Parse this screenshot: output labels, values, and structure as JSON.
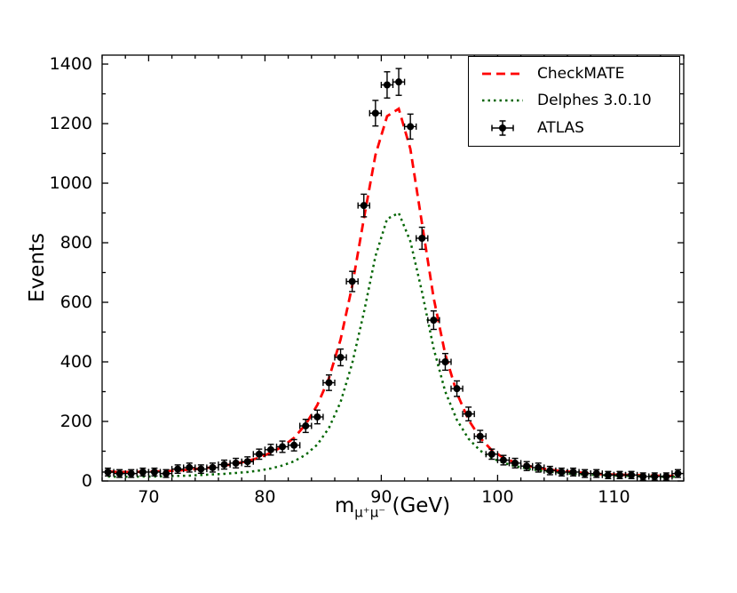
{
  "figure": {
    "ylabel": "Events",
    "xlabel_main": "m",
    "xlabel_sub": "μ⁺μ⁻",
    "xlabel_unit": " (GeV)",
    "background": "#ffffff",
    "frame_color": "#000000"
  },
  "legend": {
    "position": "upper right",
    "entries": [
      {
        "label": "CheckMATE",
        "style": "dashed",
        "color": "#ff0000"
      },
      {
        "label": "Delphes 3.0.10",
        "style": "dotted",
        "color": "#006400"
      },
      {
        "label": "ATLAS",
        "style": "errorbar-marker",
        "color": "#000000"
      }
    ]
  },
  "chart_data": {
    "type": "line",
    "title": "",
    "xlabel": "m_mu+mu- (GeV)",
    "ylabel": "Events",
    "xlim": [
      66,
      116
    ],
    "ylim": [
      0,
      1430
    ],
    "xticks": [
      70,
      80,
      90,
      100,
      110
    ],
    "yticks": [
      0,
      200,
      400,
      600,
      800,
      1000,
      1200,
      1400
    ],
    "grid": false,
    "legend_position": "upper right",
    "x": [
      66.5,
      67.5,
      68.5,
      69.5,
      70.5,
      71.5,
      72.5,
      73.5,
      74.5,
      75.5,
      76.5,
      77.5,
      78.5,
      79.5,
      80.5,
      81.5,
      82.5,
      83.5,
      84.5,
      85.5,
      86.5,
      87.5,
      88.5,
      89.5,
      90.5,
      91.5,
      92.5,
      93.5,
      94.5,
      95.5,
      96.5,
      97.5,
      98.5,
      99.5,
      100.5,
      101.5,
      102.5,
      103.5,
      104.5,
      105.5,
      106.5,
      107.5,
      108.5,
      109.5,
      110.5,
      111.5,
      112.5,
      113.5,
      114.5,
      115.5
    ],
    "series": [
      {
        "name": "CheckMATE",
        "style": "dashed",
        "color": "#ff0000",
        "y": [
          32,
          30,
          30,
          31,
          32,
          33,
          35,
          38,
          42,
          46,
          52,
          58,
          67,
          78,
          95,
          115,
          145,
          190,
          255,
          345,
          475,
          655,
          880,
          1095,
          1225,
          1250,
          1115,
          865,
          615,
          425,
          295,
          205,
          145,
          103,
          78,
          62,
          52,
          44,
          38,
          33,
          30,
          27,
          24,
          22,
          21,
          20,
          19,
          18,
          17,
          17
        ]
      },
      {
        "name": "Delphes 3.0.10",
        "style": "dotted",
        "color": "#006400",
        "y": [
          15,
          14,
          14,
          15,
          15,
          16,
          17,
          18,
          20,
          22,
          24,
          27,
          30,
          35,
          42,
          52,
          66,
          88,
          122,
          178,
          265,
          395,
          565,
          755,
          880,
          900,
          805,
          635,
          445,
          300,
          205,
          142,
          102,
          77,
          61,
          50,
          42,
          36,
          31,
          27,
          24,
          22,
          20,
          19,
          18,
          17,
          16,
          15,
          14,
          14
        ]
      },
      {
        "name": "ATLAS",
        "style": "errorbar",
        "color": "#000000",
        "xerr": 0.5,
        "y": [
          30,
          25,
          25,
          30,
          30,
          25,
          40,
          45,
          40,
          45,
          55,
          60,
          65,
          90,
          105,
          115,
          120,
          185,
          215,
          330,
          415,
          670,
          925,
          1235,
          1330,
          1340,
          1190,
          815,
          540,
          400,
          310,
          225,
          150,
          90,
          70,
          60,
          50,
          45,
          35,
          30,
          30,
          25,
          25,
          20,
          20,
          20,
          15,
          15,
          15,
          25
        ],
        "yerr": [
          13,
          13,
          13,
          13,
          13,
          13,
          14,
          15,
          14,
          15,
          15,
          16,
          16,
          17,
          18,
          19,
          19,
          22,
          23,
          26,
          28,
          34,
          38,
          43,
          44,
          45,
          42,
          37,
          31,
          28,
          26,
          23,
          20,
          17,
          16,
          16,
          15,
          15,
          14,
          13,
          13,
          13,
          13,
          12,
          12,
          12,
          12,
          12,
          12,
          13
        ]
      }
    ]
  }
}
